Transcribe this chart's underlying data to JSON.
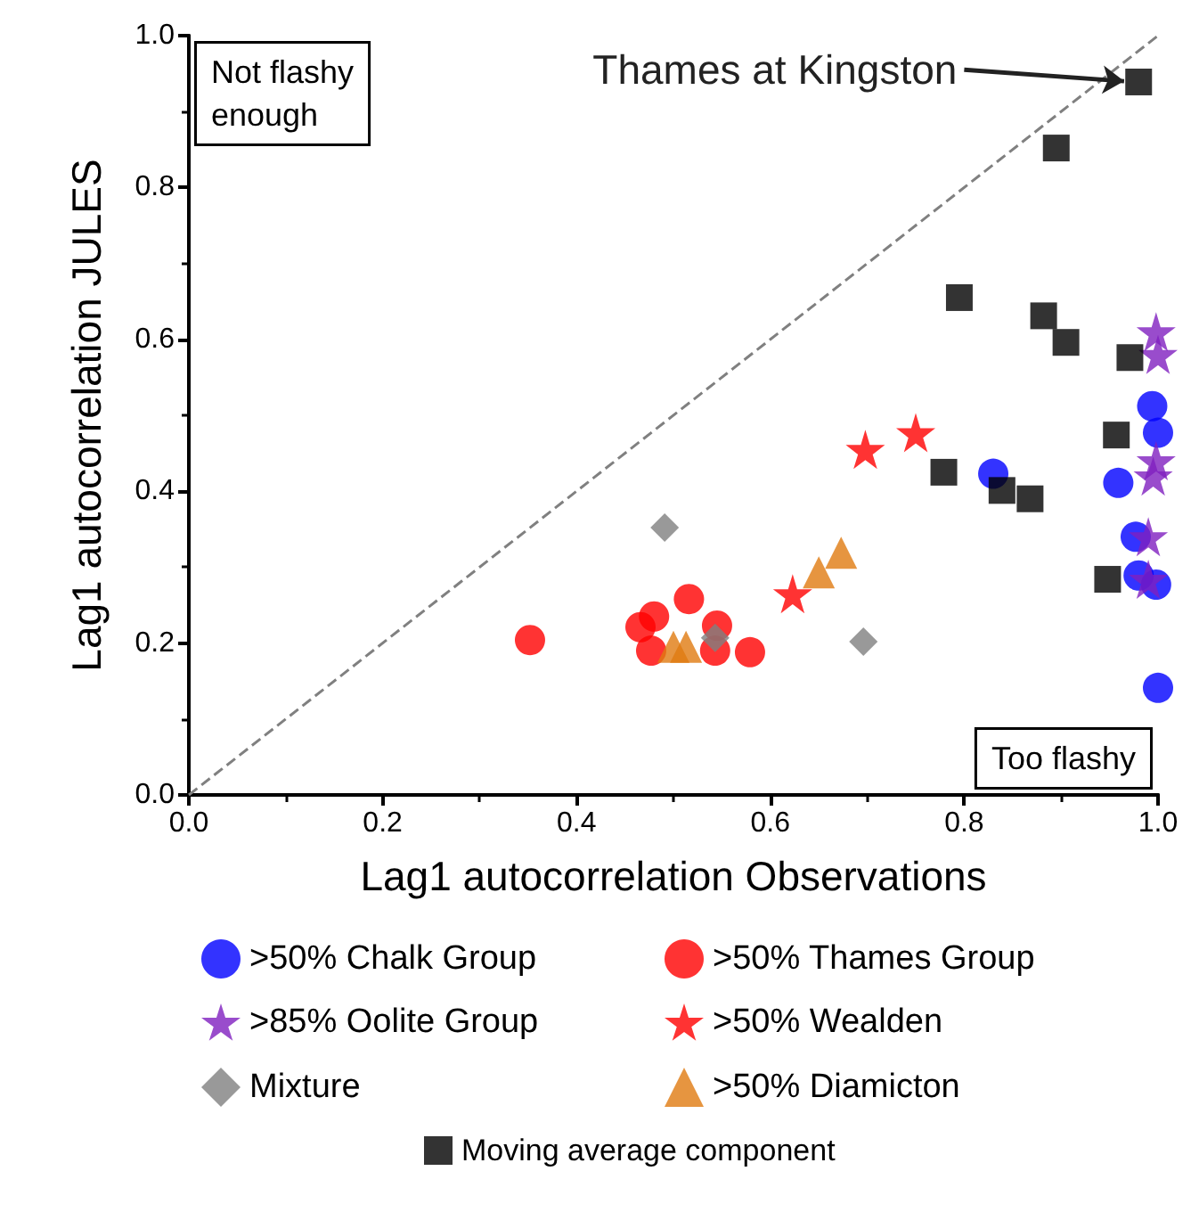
{
  "chart_data": {
    "type": "scatter",
    "xlabel": "Lag1 autocorrelation Observations",
    "ylabel": "Lag1 autocorrelation JULES",
    "xlim": [
      0,
      1
    ],
    "ylim": [
      0,
      1
    ],
    "xticks": [
      {
        "value": 0,
        "label": "0.0"
      },
      {
        "value": 0.2,
        "label": "0.2"
      },
      {
        "value": 0.4,
        "label": "0.4"
      },
      {
        "value": 0.6,
        "label": "0.6"
      },
      {
        "value": 0.8,
        "label": "0.8"
      },
      {
        "value": 1,
        "label": "1.0"
      }
    ],
    "yticks": [
      {
        "value": 0,
        "label": "0.0"
      },
      {
        "value": 0.2,
        "label": "0.2"
      },
      {
        "value": 0.4,
        "label": "0.4"
      },
      {
        "value": 0.6,
        "label": "0.6"
      },
      {
        "value": 0.8,
        "label": "0.8"
      },
      {
        "value": 1,
        "label": "1.0"
      }
    ],
    "grid": false,
    "legend": "bottom",
    "annotations": [
      "Not flashy enough",
      "Too flashy",
      {
        "text": "Thames at Kingston",
        "x": 0.98,
        "y": 0.94
      }
    ],
    "series": [
      {
        "type": "line",
        "line_style": "dashed",
        "marker": "none",
        "color": "#808080",
        "x": [
          0,
          1
        ],
        "values": [
          0,
          1
        ]
      },
      {
        "name": ">50% Chalk Group",
        "marker": "circle",
        "color": "#0000ff",
        "x": [
          0.994,
          1.0,
          0.959,
          0.977,
          0.98,
          0.998,
          0.83,
          1.0
        ],
        "values": [
          0.512,
          0.477,
          0.411,
          0.34,
          0.289,
          0.277,
          0.423,
          0.141
        ]
      },
      {
        "name": ">50% Thames Group",
        "marker": "circle",
        "color": "#ff0000",
        "x": [
          0.352,
          0.466,
          0.516,
          0.477,
          0.545,
          0.579,
          0.543,
          0.48
        ],
        "values": [
          0.204,
          0.221,
          0.258,
          0.19,
          0.223,
          0.188,
          0.19,
          0.235
        ]
      },
      {
        "name": ">85% Oolite Group",
        "marker": "star",
        "color": "#7f1fbf",
        "x": [
          0.998,
          1.0,
          0.998,
          0.995,
          0.99,
          0.99
        ],
        "values": [
          0.61,
          0.58,
          0.44,
          0.42,
          0.34,
          0.284
        ]
      },
      {
        "name": ">50% Wealden",
        "marker": "star",
        "color": "#ff0000",
        "x": [
          0.623,
          0.698,
          0.75
        ],
        "values": [
          0.265,
          0.455,
          0.477
        ]
      },
      {
        "name": "Mixture",
        "marker": "diamond",
        "color": "#808080",
        "x": [
          0.491,
          0.543,
          0.696
        ],
        "values": [
          0.352,
          0.207,
          0.202
        ]
      },
      {
        "name": ">50% Diamicton",
        "marker": "triangle",
        "color": "#e07b10",
        "x": [
          0.5,
          0.513,
          0.65,
          0.673
        ],
        "values": [
          0.195,
          0.195,
          0.293,
          0.319
        ]
      },
      {
        "name": "Moving average component",
        "marker": "square",
        "color": "#000000",
        "x": [
          0.98,
          0.895,
          0.795,
          0.882,
          0.905,
          0.971,
          0.957,
          0.779,
          0.839,
          0.868,
          0.948
        ],
        "values": [
          0.939,
          0.852,
          0.655,
          0.631,
          0.596,
          0.576,
          0.474,
          0.425,
          0.401,
          0.39,
          0.284
        ]
      }
    ]
  }
}
